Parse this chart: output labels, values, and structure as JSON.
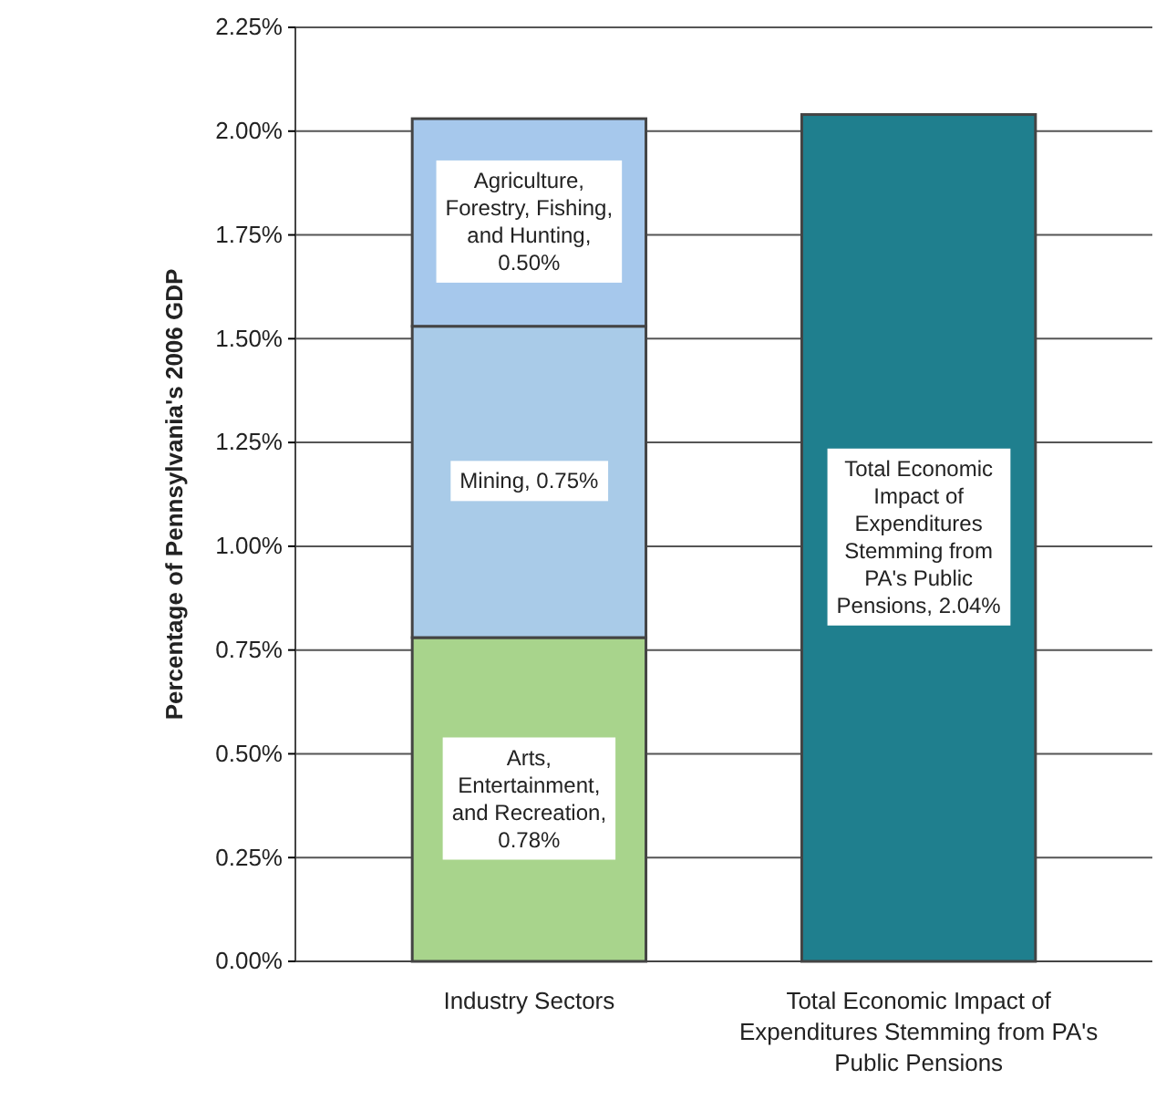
{
  "chart_data": {
    "type": "bar",
    "stacked": true,
    "ylabel": "Percentage of Pennsylvania's 2006 GDP",
    "categories": [
      "Industry Sectors",
      "Total Economic Impact of Expenditures Stemming from PA's Public Pensions"
    ],
    "series": [
      {
        "color": "#a8d48c",
        "values": [
          0.78,
          null
        ],
        "value_labels": [
          "Arts, Entertainment, and Recreation, 0.78%",
          null
        ]
      },
      {
        "color": "#a9cbe8",
        "values": [
          0.75,
          null
        ],
        "value_labels": [
          "Mining, 0.75%",
          null
        ]
      },
      {
        "color": "#a6c8ec",
        "values": [
          0.5,
          null
        ],
        "value_labels": [
          "Agriculture, Forestry, Fishing, and Hunting, 0.50%",
          null
        ]
      },
      {
        "color": "#1f7f8e",
        "values": [
          null,
          2.04
        ],
        "value_labels": [
          null,
          "Total Economic Impact of Expenditures Stemming from PA's Public Pensions, 2.04%"
        ]
      }
    ],
    "ylim": [
      0,
      2.25
    ],
    "yticks": [
      {
        "value": 0,
        "label": "0.00%"
      },
      {
        "value": 0.25,
        "label": "0.25%"
      },
      {
        "value": 0.5,
        "label": "0.50%"
      },
      {
        "value": 0.75,
        "label": "0.75%"
      },
      {
        "value": 1,
        "label": "1.00%"
      },
      {
        "value": 1.25,
        "label": "1.25%"
      },
      {
        "value": 1.5,
        "label": "1.50%"
      },
      {
        "value": 1.75,
        "label": "1.75%"
      },
      {
        "value": 2,
        "label": "2.00%"
      },
      {
        "value": 2.25,
        "label": "2.25%"
      }
    ],
    "grid": "y"
  }
}
